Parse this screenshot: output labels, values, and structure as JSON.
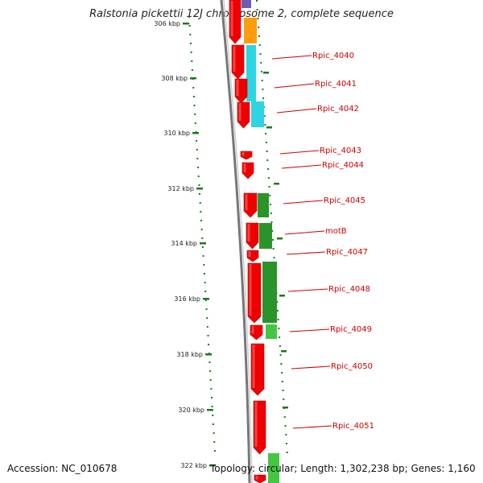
{
  "title": "Ralstonia pickettii 12J chromosome 2, complete sequence",
  "footer": {
    "accession": "Accession: NC_010678",
    "topology": "Topology: circular; Length: 1,302,238 bp; Genes: 1,160"
  },
  "scale": {
    "ticks": [
      "306 kbp",
      "308 kbp",
      "310 kbp",
      "312 kbp",
      "314 kbp",
      "316 kbp",
      "318 kbp",
      "320 kbp",
      "322 kbp"
    ]
  },
  "genes": [
    {
      "name": "Rpic_4040"
    },
    {
      "name": "Rpic_4041"
    },
    {
      "name": "Rpic_4042"
    },
    {
      "name": "Rpic_4043"
    },
    {
      "name": "Rpic_4044"
    },
    {
      "name": "Rpic_4045"
    },
    {
      "name": "motB"
    },
    {
      "name": "Rpic_4047"
    },
    {
      "name": "Rpic_4048"
    },
    {
      "name": "Rpic_4049"
    },
    {
      "name": "Rpic_4050"
    },
    {
      "name": "Rpic_4051"
    }
  ],
  "colors": {
    "gene": "#ee0000",
    "label": "#cc0000",
    "tick": "#1a7a1a",
    "backbone": "#888888",
    "cog_cyan": "#22d3e0",
    "cog_green": "#1e8e1e",
    "cog_lightgreen": "#39c439",
    "cog_orange": "#ff9900",
    "cog_purple": "#6655aa"
  }
}
